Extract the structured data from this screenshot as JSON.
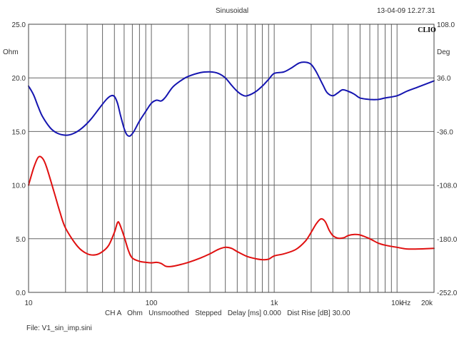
{
  "header": {
    "title": "Sinusoidal",
    "datetime": "13-04-09 12.27.31",
    "brand": "CLIO"
  },
  "info": {
    "channel": "CH A",
    "units": "Ohm",
    "smoothing": "Unsmoothed",
    "mode": "Stepped",
    "delay_label": "Delay [ms]",
    "delay_value": "0.000",
    "dist_label": "Dist Rise [dB]",
    "dist_value": "30.00"
  },
  "file_label": "File: V1_sin_imp.sini",
  "chart_data": {
    "type": "line",
    "x_scale": "log",
    "xlim": [
      10,
      20000
    ],
    "ylim_left": [
      0,
      25
    ],
    "ylim_right": [
      -252,
      108
    ],
    "y_left_unit": "Ohm",
    "y_right_unit": "Deg",
    "x_unit": "Hz",
    "grid": true,
    "x_ticks": [
      {
        "value": 10,
        "label": "10"
      },
      {
        "value": 100,
        "label": "100"
      },
      {
        "value": 1000,
        "label": "1k"
      },
      {
        "value": 10000,
        "label": "10k"
      },
      {
        "value": 20000,
        "label": "20k"
      }
    ],
    "y_left_ticks": [
      {
        "value": 0,
        "label": "0.0"
      },
      {
        "value": 5,
        "label": "5.0"
      },
      {
        "value": 10,
        "label": "10.0"
      },
      {
        "value": 15,
        "label": "15.0"
      },
      {
        "value": 20,
        "label": "20.0"
      },
      {
        "value": 25,
        "label": "25.0"
      }
    ],
    "y_right_ticks": [
      {
        "value": -252,
        "label": "-252.0"
      },
      {
        "value": -180,
        "label": "-180.0"
      },
      {
        "value": -108,
        "label": "-108.0"
      },
      {
        "value": -36,
        "label": "-36.0"
      },
      {
        "value": 36,
        "label": "36.0"
      },
      {
        "value": 108,
        "label": "108.0"
      }
    ],
    "series": [
      {
        "axis": "left",
        "color": "#e01010",
        "points": [
          [
            10,
            10.0
          ],
          [
            11,
            11.6
          ],
          [
            12,
            12.6
          ],
          [
            13,
            12.5
          ],
          [
            14,
            11.7
          ],
          [
            16,
            9.5
          ],
          [
            18,
            7.5
          ],
          [
            20,
            6.0
          ],
          [
            25,
            4.3
          ],
          [
            30,
            3.6
          ],
          [
            35,
            3.5
          ],
          [
            40,
            3.8
          ],
          [
            45,
            4.4
          ],
          [
            50,
            5.6
          ],
          [
            53,
            6.5
          ],
          [
            55,
            6.4
          ],
          [
            60,
            5.2
          ],
          [
            65,
            3.9
          ],
          [
            70,
            3.2
          ],
          [
            80,
            2.9
          ],
          [
            90,
            2.8
          ],
          [
            100,
            2.75
          ],
          [
            110,
            2.8
          ],
          [
            120,
            2.7
          ],
          [
            130,
            2.45
          ],
          [
            140,
            2.4
          ],
          [
            160,
            2.5
          ],
          [
            200,
            2.8
          ],
          [
            250,
            3.2
          ],
          [
            300,
            3.6
          ],
          [
            350,
            4.0
          ],
          [
            400,
            4.2
          ],
          [
            450,
            4.1
          ],
          [
            500,
            3.8
          ],
          [
            600,
            3.35
          ],
          [
            700,
            3.15
          ],
          [
            800,
            3.05
          ],
          [
            900,
            3.1
          ],
          [
            1000,
            3.4
          ],
          [
            1200,
            3.6
          ],
          [
            1500,
            4.0
          ],
          [
            1800,
            4.8
          ],
          [
            2000,
            5.6
          ],
          [
            2200,
            6.4
          ],
          [
            2400,
            6.85
          ],
          [
            2600,
            6.6
          ],
          [
            2800,
            5.8
          ],
          [
            3000,
            5.3
          ],
          [
            3300,
            5.05
          ],
          [
            3700,
            5.1
          ],
          [
            4000,
            5.3
          ],
          [
            4500,
            5.4
          ],
          [
            5000,
            5.35
          ],
          [
            6000,
            5.0
          ],
          [
            7000,
            4.6
          ],
          [
            8000,
            4.4
          ],
          [
            10000,
            4.2
          ],
          [
            12000,
            4.05
          ],
          [
            15000,
            4.05
          ],
          [
            20000,
            4.1
          ]
        ]
      },
      {
        "axis": "right",
        "color": "#1515b0",
        "points": [
          [
            10,
            25
          ],
          [
            11,
            13
          ],
          [
            12,
            -3
          ],
          [
            13,
            -16
          ],
          [
            15,
            -31
          ],
          [
            17,
            -38
          ],
          [
            20,
            -41
          ],
          [
            23,
            -39
          ],
          [
            27,
            -32
          ],
          [
            32,
            -20
          ],
          [
            38,
            -4
          ],
          [
            43,
            7
          ],
          [
            47,
            12
          ],
          [
            50,
            11
          ],
          [
            53,
            2
          ],
          [
            56,
            -14
          ],
          [
            60,
            -32
          ],
          [
            63,
            -40
          ],
          [
            67,
            -42
          ],
          [
            72,
            -36
          ],
          [
            80,
            -22
          ],
          [
            90,
            -9
          ],
          [
            100,
            2
          ],
          [
            110,
            6
          ],
          [
            120,
            5
          ],
          [
            130,
            10
          ],
          [
            150,
            24
          ],
          [
            180,
            34
          ],
          [
            200,
            38
          ],
          [
            250,
            43
          ],
          [
            300,
            44
          ],
          [
            350,
            42
          ],
          [
            400,
            36
          ],
          [
            450,
            26
          ],
          [
            500,
            18
          ],
          [
            550,
            13
          ],
          [
            600,
            12
          ],
          [
            700,
            17
          ],
          [
            800,
            25
          ],
          [
            900,
            34
          ],
          [
            1000,
            42
          ],
          [
            1200,
            44
          ],
          [
            1400,
            50
          ],
          [
            1600,
            56
          ],
          [
            1800,
            57
          ],
          [
            2000,
            54
          ],
          [
            2200,
            44
          ],
          [
            2500,
            26
          ],
          [
            2700,
            16
          ],
          [
            3000,
            12
          ],
          [
            3300,
            16
          ],
          [
            3600,
            20
          ],
          [
            4000,
            18
          ],
          [
            4500,
            14
          ],
          [
            5000,
            9
          ],
          [
            6000,
            7
          ],
          [
            7000,
            7
          ],
          [
            8000,
            9
          ],
          [
            10000,
            12
          ],
          [
            12000,
            18
          ],
          [
            15000,
            24
          ],
          [
            20000,
            32
          ]
        ]
      }
    ]
  }
}
